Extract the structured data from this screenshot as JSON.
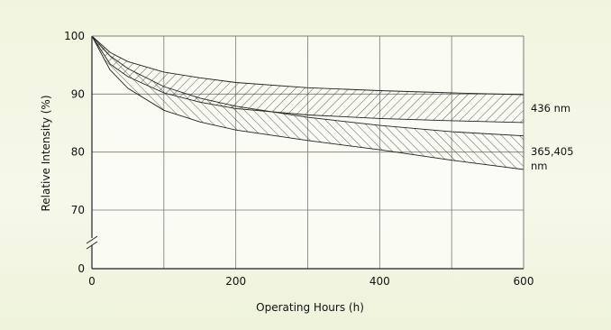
{
  "chart_data": {
    "type": "area",
    "title": "",
    "xlabel": "Operating Hours (h)",
    "ylabel": "Relative Intensity (%)",
    "xlim": [
      0,
      600
    ],
    "ylim": [
      0,
      100
    ],
    "axis_break": {
      "from": 0,
      "to": 62
    },
    "x_ticks": [
      "0",
      "200",
      "400",
      "600"
    ],
    "y_ticks": [
      "0",
      "70",
      "80",
      "90",
      "100"
    ],
    "grid": true,
    "series": [
      {
        "name": "436 nm",
        "x": [
          0,
          25,
          50,
          100,
          150,
          200,
          300,
          400,
          500,
          600
        ],
        "upper": [
          100,
          97.2,
          95.6,
          93.8,
          92.8,
          92.0,
          91.1,
          90.6,
          90.2,
          89.9
        ],
        "lower": [
          100,
          95.2,
          93.0,
          90.2,
          88.6,
          87.5,
          86.4,
          85.8,
          85.4,
          85.1
        ]
      },
      {
        "name": "365,405 nm",
        "x": [
          0,
          25,
          50,
          100,
          150,
          200,
          300,
          400,
          500,
          600
        ],
        "upper": [
          100,
          96.6,
          94.4,
          91.3,
          89.3,
          87.9,
          86.0,
          84.6,
          83.5,
          82.8
        ],
        "lower": [
          100,
          94.2,
          91.0,
          87.2,
          85.2,
          83.8,
          82.0,
          80.4,
          78.6,
          77.0
        ]
      }
    ]
  }
}
